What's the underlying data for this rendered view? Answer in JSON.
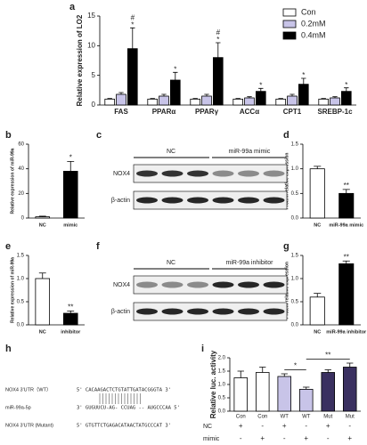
{
  "panels": [
    "a",
    "b",
    "c",
    "d",
    "e",
    "f",
    "g",
    "h",
    "i"
  ],
  "chart_data": [
    {
      "type": "bar",
      "ylabel": "Relative expression of LO2",
      "categories": [
        "FAS",
        "PPARα",
        "PPARγ",
        "ACCα",
        "CPT1",
        "SREBP-1c"
      ],
      "series": [
        {
          "name": "Con",
          "color": "#ffffff",
          "values": [
            1,
            1,
            1,
            1,
            1,
            1
          ],
          "errors": [
            0.1,
            0.1,
            0.1,
            0.1,
            0.1,
            0.1
          ]
        },
        {
          "name": "0.2mM",
          "color": "#c8c4e8",
          "values": [
            1.8,
            1.5,
            1.5,
            1.2,
            1.5,
            1.2
          ],
          "errors": [
            0.3,
            0.3,
            0.3,
            0.2,
            0.3,
            0.2
          ]
        },
        {
          "name": "0.4mM",
          "color": "#000000",
          "values": [
            9.5,
            4.2,
            8,
            2.3,
            3.5,
            2.3
          ],
          "errors": [
            3.5,
            1.3,
            2.5,
            0.5,
            1,
            0.6
          ]
        }
      ],
      "annotations": [
        [
          "*",
          "#"
        ],
        [
          "*"
        ],
        [
          "*",
          "#"
        ],
        [
          "*"
        ],
        [
          "*"
        ],
        [
          "*"
        ]
      ],
      "ylim": [
        0,
        15
      ],
      "yticks": [
        0,
        5,
        10,
        15
      ]
    },
    {
      "type": "bar",
      "ylabel": "Relative expression of miR-99a",
      "categories": [
        "NC",
        "mimic"
      ],
      "values": [
        1,
        38
      ],
      "errors": [
        0.5,
        8
      ],
      "colors": [
        "#ffffff",
        "#000000"
      ],
      "annotations": [
        null,
        "*"
      ],
      "ylim": [
        0,
        60
      ],
      "yticks": [
        0,
        20,
        40,
        60
      ]
    },
    {
      "type": "bar",
      "ylabel": "Protein relative expression",
      "categories": [
        "NC",
        "miR-99a mimic"
      ],
      "values": [
        1,
        0.5
      ],
      "errors": [
        0.05,
        0.08
      ],
      "colors": [
        "#ffffff",
        "#000000"
      ],
      "annotations": [
        null,
        "**"
      ],
      "ylim": [
        0,
        1.5
      ],
      "yticks": [
        {
          "value": 0,
          "label": "0.0"
        },
        0.5,
        {
          "value": 1,
          "label": "1.0"
        },
        1.5
      ]
    },
    {
      "type": "bar",
      "ylabel": "Relative expression of miR-99a",
      "categories": [
        "NC",
        "inhibitor"
      ],
      "values": [
        1,
        0.25
      ],
      "errors": [
        0.12,
        0.05
      ],
      "colors": [
        "#ffffff",
        "#000000"
      ],
      "annotations": [
        null,
        "**"
      ],
      "ylim": [
        0,
        1.5
      ],
      "yticks": [
        {
          "value": 0,
          "label": "0.0"
        },
        0.5,
        {
          "value": 1,
          "label": "1.0"
        },
        1.5
      ]
    },
    {
      "type": "bar",
      "ylabel": "Protein relative expression",
      "categories": [
        "NC",
        "miR-99a inhibitor"
      ],
      "values": [
        0.6,
        1.32
      ],
      "errors": [
        0.08,
        0.06
      ],
      "colors": [
        "#ffffff",
        "#000000"
      ],
      "annotations": [
        null,
        "**"
      ],
      "ylim": [
        0,
        1.5
      ],
      "yticks": [
        {
          "value": 0,
          "label": "0.0"
        },
        0.5,
        {
          "value": 1,
          "label": "1.0"
        },
        1.5
      ]
    },
    {
      "type": "bar",
      "ylabel": "Relative luc. activity",
      "categories": [
        "Con",
        "Con",
        "WT",
        "WT",
        "Mut",
        "Mut"
      ],
      "values": [
        1.25,
        1.45,
        1.3,
        0.82,
        1.45,
        1.65
      ],
      "errors": [
        0.25,
        0.2,
        0.1,
        0.08,
        0.1,
        0.15
      ],
      "colors": [
        "#ffffff",
        "#ffffff",
        "#c8c4e8",
        "#c8c4e8",
        "#3a3060",
        "#3a3060"
      ],
      "brackets": [
        "*",
        "**"
      ],
      "conditions": [
        {
          "name": "NC",
          "marks": [
            "+",
            "-",
            "+",
            "-",
            "+",
            "-"
          ]
        },
        {
          "name": "mimic",
          "marks": [
            "-",
            "+",
            "-",
            "+",
            "-",
            "+"
          ]
        }
      ],
      "ylim": [
        0,
        2
      ],
      "yticks": [
        {
          "value": 0,
          "label": "0.0"
        },
        0.5,
        {
          "value": 1,
          "label": "1.0"
        },
        1.5,
        {
          "value": 2,
          "label": "2.0"
        }
      ]
    }
  ],
  "blots": [
    {
      "groups": [
        "NC",
        "miR-99a mimic"
      ],
      "rows": [
        "NOX4",
        "β-actin"
      ]
    },
    {
      "groups": [
        "NC",
        "miR-99a inhibitor"
      ],
      "rows": [
        "NOX4",
        "β-actin"
      ]
    }
  ],
  "sequence": [
    {
      "label": "NOX4 3'UTR（WT）",
      "seq": "5' CACAAGACTCTGTATTGATACGGGTA 3'"
    },
    {
      "label": "miR-99a-5p",
      "seq": "3' GUGUUCU-AG- CCUAG -- AUGCCCAA 5'"
    },
    {
      "label": "NOX4 3'UTR (Mutant)",
      "seq": "5' GTGTTCTGAGACATAACTATGCCCAT 3'"
    }
  ]
}
